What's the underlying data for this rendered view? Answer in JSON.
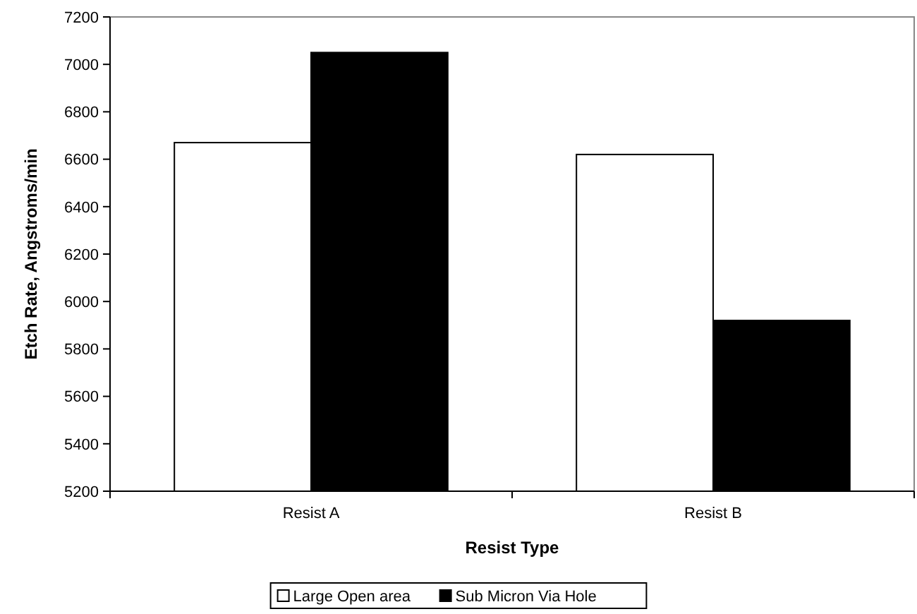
{
  "chart_data": {
    "type": "bar",
    "xlabel": "Resist Type",
    "ylabel": "Etch Rate, Angstroms/min",
    "categories": [
      "Resist A",
      "Resist B"
    ],
    "series": [
      {
        "name": "Large Open area",
        "color": "#ffffff",
        "values": [
          6670,
          6620
        ]
      },
      {
        "name": "Sub Micron Via Hole",
        "color": "#000000",
        "values": [
          7050,
          5920
        ]
      }
    ],
    "ylim": [
      5200,
      7200
    ],
    "yticks": [
      5200,
      5400,
      5600,
      5800,
      6000,
      6200,
      6400,
      6600,
      6800,
      7000,
      7200
    ],
    "grid": false,
    "legend": "bottom"
  }
}
